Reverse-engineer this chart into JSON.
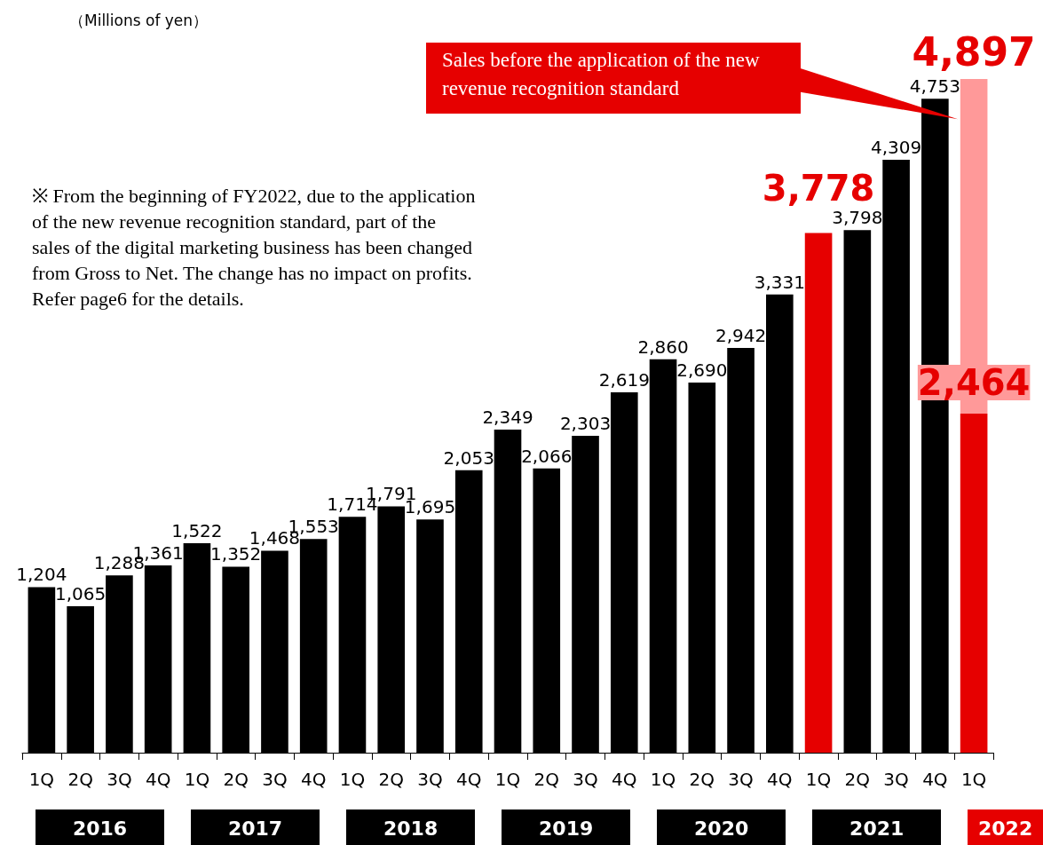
{
  "chart_data": {
    "type": "bar",
    "stacked": true,
    "data_labels": true,
    "grid": false,
    "categories": [
      "1Q",
      "2Q",
      "3Q",
      "4Q",
      "1Q",
      "2Q",
      "3Q",
      "4Q",
      "1Q",
      "2Q",
      "3Q",
      "4Q",
      "1Q",
      "2Q",
      "3Q",
      "4Q",
      "1Q",
      "2Q",
      "3Q",
      "4Q",
      "1Q",
      "2Q",
      "3Q",
      "4Q",
      "1Q"
    ],
    "series": [
      {
        "color": "#000000",
        "colors": [
          "#000000",
          "#000000",
          "#000000",
          "#000000",
          "#000000",
          "#000000",
          "#000000",
          "#000000",
          "#000000",
          "#000000",
          "#000000",
          "#000000",
          "#000000",
          "#000000",
          "#000000",
          "#000000",
          "#000000",
          "#000000",
          "#000000",
          "#000000",
          "#e60000",
          "#000000",
          "#000000",
          "#000000",
          "#e60000"
        ],
        "values": [
          1204,
          1065,
          1288,
          1361,
          1522,
          1352,
          1468,
          1553,
          1714,
          1791,
          1695,
          2053,
          2349,
          2066,
          2303,
          2619,
          2860,
          2690,
          2942,
          3331,
          3778,
          3798,
          4309,
          4753,
          2464
        ],
        "value_labels": [
          "1,204",
          "1,065",
          "1,288",
          "1,361",
          "1,522",
          "1,352",
          "1,468",
          "1,553",
          "1,714",
          "1,791",
          "1,695",
          "2,053",
          "2,349",
          "2,066",
          "2,303",
          "2,619",
          "2,860",
          "2,690",
          "2,942",
          "3,331",
          "3,778",
          "3,798",
          "4,309",
          "4,753",
          "2,464"
        ]
      },
      {
        "color": "#ff9999",
        "values": [
          null,
          null,
          null,
          null,
          null,
          null,
          null,
          null,
          null,
          null,
          null,
          null,
          null,
          null,
          null,
          null,
          null,
          null,
          null,
          null,
          null,
          null,
          null,
          null,
          2433
        ],
        "value_labels": [
          null,
          null,
          null,
          null,
          null,
          null,
          null,
          null,
          null,
          null,
          null,
          null,
          null,
          null,
          null,
          null,
          null,
          null,
          null,
          null,
          null,
          null,
          null,
          null,
          null
        ]
      }
    ],
    "totals": [
      null,
      null,
      null,
      null,
      null,
      null,
      null,
      null,
      null,
      null,
      null,
      null,
      null,
      null,
      null,
      null,
      null,
      null,
      null,
      null,
      null,
      null,
      null,
      null,
      "4,897"
    ],
    "annotations": [
      "（Millions of yen）",
      "Sales before the application of the new revenue recognition standard",
      "※ From the beginning of FY2022, due to the application of the new revenue recognition standard, part of the sales of the digital marketing business has been changed from Gross to Net. The change has no impact on profits. Refer page6 for the details.",
      "2016",
      "2017",
      "2018",
      "2019",
      "2020",
      "2021",
      "2022"
    ]
  }
}
